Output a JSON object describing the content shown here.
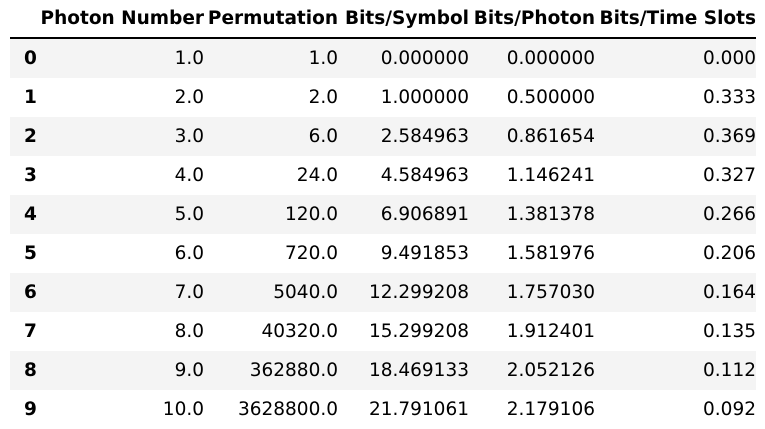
{
  "table": {
    "columns": [
      "",
      "Photon Number",
      "Permutation",
      "Bits/Symbol",
      "Bits/Photon",
      "Bits/Time Slots"
    ],
    "rows": [
      [
        "0",
        "1.0",
        "1.0",
        "0.000000",
        "0.000000",
        "0.000"
      ],
      [
        "1",
        "2.0",
        "2.0",
        "1.000000",
        "0.500000",
        "0.333"
      ],
      [
        "2",
        "3.0",
        "6.0",
        "2.584963",
        "0.861654",
        "0.369"
      ],
      [
        "3",
        "4.0",
        "24.0",
        "4.584963",
        "1.146241",
        "0.327"
      ],
      [
        "4",
        "5.0",
        "120.0",
        "6.906891",
        "1.381378",
        "0.266"
      ],
      [
        "5",
        "6.0",
        "720.0",
        "9.491853",
        "1.581976",
        "0.206"
      ],
      [
        "6",
        "7.0",
        "5040.0",
        "12.299208",
        "1.757030",
        "0.164"
      ],
      [
        "7",
        "8.0",
        "40320.0",
        "15.299208",
        "1.912401",
        "0.135"
      ],
      [
        "8",
        "9.0",
        "362880.0",
        "18.469133",
        "2.052126",
        "0.112"
      ],
      [
        "9",
        "10.0",
        "3628800.0",
        "21.791061",
        "2.179106",
        "0.092"
      ]
    ]
  }
}
